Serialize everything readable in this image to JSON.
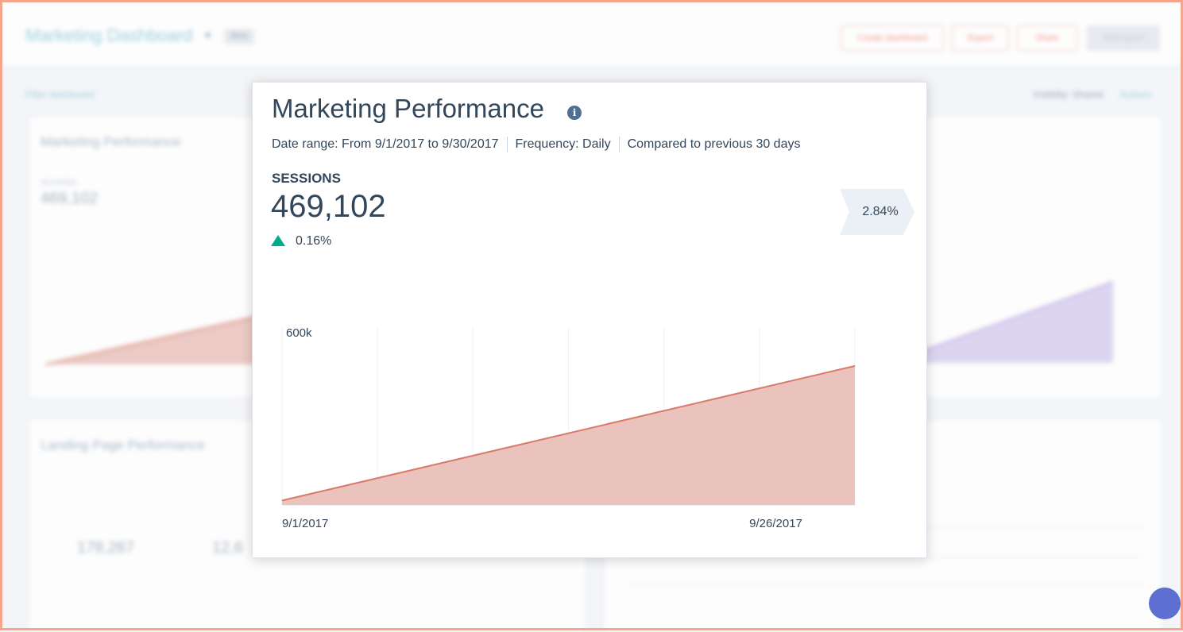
{
  "dashboard": {
    "title": "Marketing Dashboard",
    "badge": "Beta",
    "buttons": [
      "Create dashboard",
      "Export",
      "Share",
      "Add report"
    ],
    "filter_link": "Filter dashboard",
    "visibility": "Visibility: Shared",
    "actions": "Actions",
    "card_marketing": {
      "title": "Marketing Performance",
      "sessions_label": "SESSIONS",
      "sessions_value": "469,102"
    },
    "card_landing": {
      "title": "Landing Page Performance",
      "value_1": "178,267",
      "value_2": "12,6"
    }
  },
  "modal": {
    "title": "Marketing Performance",
    "info_icon": "info-icon",
    "date_range": "Date range: From 9/1/2017 to 9/30/2017",
    "frequency": "Frequency: Daily",
    "comparison": "Compared to previous 30 days",
    "metric_label": "SESSIONS",
    "metric_value": "469,102",
    "delta": "0.16%",
    "delta_direction": "up",
    "change_flag": "2.84%",
    "colors": {
      "series_line": "#d97a6a",
      "series_fill": "#ebc3bd",
      "delta_up": "#00bda5",
      "flag_bg": "#eaf0f6",
      "text": "#33475b"
    }
  },
  "chart_data": {
    "type": "area",
    "title": "",
    "xlabel": "",
    "ylabel": "",
    "x_tick_labels": [
      "9/1/2017",
      "9/26/2017"
    ],
    "y_tick_labels": [
      "600k"
    ],
    "x": [
      "9/1/2017",
      "9/30/2017"
    ],
    "series": [
      {
        "values": [
          15000,
          469102
        ]
      }
    ],
    "ylim": [
      0,
      600000
    ],
    "grid": "vertical"
  }
}
